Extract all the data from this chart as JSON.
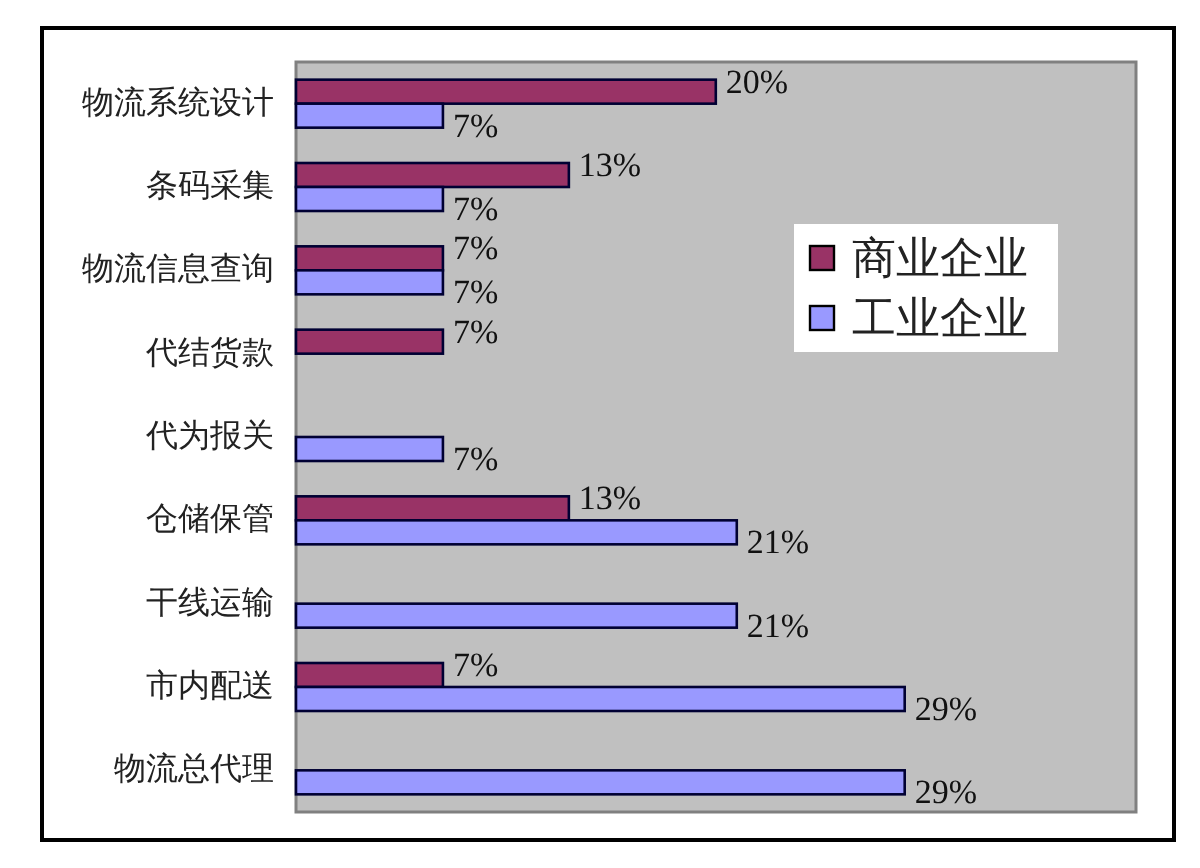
{
  "chart_data": {
    "type": "bar",
    "orientation": "horizontal",
    "categories": [
      "物流系统设计",
      "条码采集",
      "物流信息查询",
      "代结货款",
      "代为报关",
      "仓储保管",
      "干线运输",
      "市内配送",
      "物流总代理"
    ],
    "series": [
      {
        "name": "商业企业",
        "color": "#993366",
        "values": [
          20,
          13,
          7,
          7,
          null,
          13,
          null,
          7,
          null
        ],
        "value_labels": [
          "20%",
          "13%",
          "7%",
          "7%",
          null,
          "13%",
          null,
          "7%",
          null
        ]
      },
      {
        "name": "工业企业",
        "color": "#9999ff",
        "values": [
          7,
          7,
          7,
          null,
          7,
          21,
          21,
          29,
          29
        ],
        "value_labels": [
          "7%",
          "7%",
          "7%",
          null,
          "7%",
          "21%",
          "21%",
          "29%",
          "29%"
        ]
      }
    ],
    "legend": "right"
  }
}
